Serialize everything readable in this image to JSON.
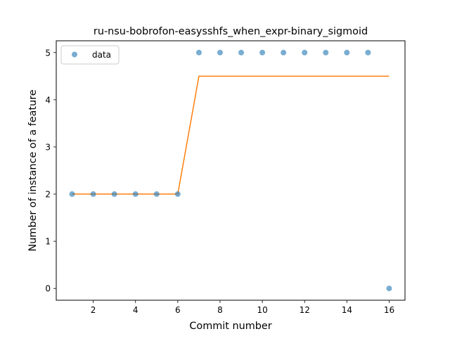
{
  "chart_data": {
    "type": "scatter",
    "title": "ru-nsu-bobrofon-easysshfs_when_expr-binary_sigmoid",
    "xlabel": "Commit number",
    "ylabel": "Number of instance of a feature",
    "xlim": [
      0.25,
      16.75
    ],
    "ylim": [
      -0.25,
      5.25
    ],
    "xticks": [
      2,
      4,
      6,
      8,
      10,
      12,
      14,
      16
    ],
    "yticks": [
      0,
      1,
      2,
      3,
      4,
      5
    ],
    "grid": false,
    "legend_position": "top-left",
    "series": [
      {
        "name": "data",
        "kind": "scatter",
        "color": "#1f77b4",
        "x": [
          1,
          2,
          3,
          4,
          5,
          6,
          7,
          8,
          9,
          10,
          11,
          12,
          13,
          14,
          15,
          16
        ],
        "y": [
          2,
          2,
          2,
          2,
          2,
          2,
          5,
          5,
          5,
          5,
          5,
          5,
          5,
          5,
          5,
          0
        ]
      },
      {
        "kind": "line",
        "color": "#ff7f0e",
        "x": [
          1,
          2,
          3,
          4,
          5,
          6,
          7,
          8,
          9,
          10,
          11,
          12,
          13,
          14,
          15,
          16
        ],
        "y": [
          2,
          2,
          2,
          2,
          2,
          2,
          4.5,
          4.5,
          4.5,
          4.5,
          4.5,
          4.5,
          4.5,
          4.5,
          4.5,
          4.5
        ]
      }
    ]
  }
}
